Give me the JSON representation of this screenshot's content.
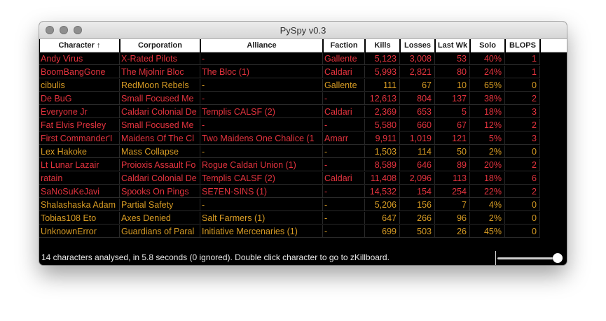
{
  "window": {
    "title": "PySpy v0.3"
  },
  "colors": {
    "red": "#e4333e",
    "orange": "#d89c24",
    "background": "#000000"
  },
  "table": {
    "columns": [
      "Character ↑",
      "Corporation",
      "Alliance",
      "Faction",
      "Kills",
      "Losses",
      "Last Wk",
      "Solo",
      "BLOPS"
    ],
    "rows": [
      {
        "character": "Andy Virus",
        "corporation": "X-Rated Pilots",
        "alliance": "-",
        "faction": "Gallente",
        "kills": "5,123",
        "losses": "3,008",
        "last_wk": "53",
        "solo": "40%",
        "blops": "1",
        "color": "red"
      },
      {
        "character": "BoomBangGone",
        "corporation": "The Mjolnir Bloc",
        "alliance": "The Bloc (1)",
        "faction": "Caldari",
        "kills": "5,993",
        "losses": "2,821",
        "last_wk": "80",
        "solo": "24%",
        "blops": "1",
        "color": "red"
      },
      {
        "character": "cibulis",
        "corporation": "RedMoon Rebels",
        "alliance": "-",
        "faction": "Gallente",
        "kills": "111",
        "losses": "67",
        "last_wk": "10",
        "solo": "65%",
        "blops": "0",
        "color": "orange"
      },
      {
        "character": "De BuG",
        "corporation": "Small Focused Me",
        "alliance": "-",
        "faction": "-",
        "kills": "12,613",
        "losses": "804",
        "last_wk": "137",
        "solo": "38%",
        "blops": "2",
        "color": "red"
      },
      {
        "character": "Everyone Jr",
        "corporation": "Caldari Colonial De",
        "alliance": "Templis CALSF (2)",
        "faction": "Caldari",
        "kills": "2,369",
        "losses": "653",
        "last_wk": "5",
        "solo": "18%",
        "blops": "3",
        "color": "red"
      },
      {
        "character": "Fat Elvis Presley",
        "corporation": "Small Focused Me",
        "alliance": "-",
        "faction": "-",
        "kills": "5,580",
        "losses": "660",
        "last_wk": "67",
        "solo": "12%",
        "blops": "2",
        "color": "red"
      },
      {
        "character": "First Commander'I",
        "corporation": "Maidens Of The Cl",
        "alliance": "Two Maidens One Chalice (1",
        "faction": "Amarr",
        "kills": "9,911",
        "losses": "1,019",
        "last_wk": "121",
        "solo": "5%",
        "blops": "3",
        "color": "red"
      },
      {
        "character": "Lex Hakoke",
        "corporation": "Mass Collapse",
        "alliance": "-",
        "faction": "-",
        "kills": "1,503",
        "losses": "114",
        "last_wk": "50",
        "solo": "2%",
        "blops": "0",
        "color": "orange"
      },
      {
        "character": "Lt Lunar Lazair",
        "corporation": "Proioxis Assault Fo",
        "alliance": "Rogue Caldari Union (1)",
        "faction": "-",
        "kills": "8,589",
        "losses": "646",
        "last_wk": "89",
        "solo": "20%",
        "blops": "2",
        "color": "red"
      },
      {
        "character": "ratain",
        "corporation": "Caldari Colonial De",
        "alliance": "Templis CALSF (2)",
        "faction": "Caldari",
        "kills": "11,408",
        "losses": "2,096",
        "last_wk": "113",
        "solo": "18%",
        "blops": "6",
        "color": "red"
      },
      {
        "character": "SaNoSuKeJavi",
        "corporation": "Spooks On Pings",
        "alliance": "SE7EN-SINS (1)",
        "faction": "-",
        "kills": "14,532",
        "losses": "154",
        "last_wk": "254",
        "solo": "22%",
        "blops": "2",
        "color": "red"
      },
      {
        "character": "Shalashaska Adam",
        "corporation": "Partial Safety",
        "alliance": "-",
        "faction": "-",
        "kills": "5,206",
        "losses": "156",
        "last_wk": "7",
        "solo": "4%",
        "blops": "0",
        "color": "orange"
      },
      {
        "character": "Tobias108 Eto",
        "corporation": "Axes Denied",
        "alliance": "Salt Farmers (1)",
        "faction": "-",
        "kills": "647",
        "losses": "266",
        "last_wk": "96",
        "solo": "2%",
        "blops": "0",
        "color": "orange"
      },
      {
        "character": "UnknownError",
        "corporation": "Guardians of Paral",
        "alliance": "Initiative Mercenaries (1)",
        "faction": "-",
        "kills": "699",
        "losses": "503",
        "last_wk": "26",
        "solo": "45%",
        "blops": "0",
        "color": "orange"
      }
    ]
  },
  "status": {
    "text": "14 characters analysed, in 5.8 seconds (0 ignored). Double click character to go to zKillboard."
  }
}
